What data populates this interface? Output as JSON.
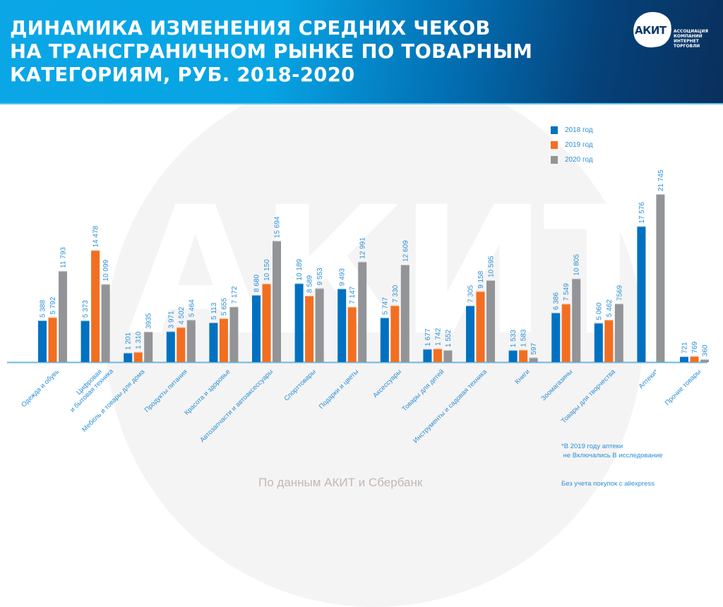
{
  "header": {
    "title_lines": [
      "ДИНАМИКА ИЗМЕНЕНИЯ СРЕДНИХ ЧЕКОВ",
      "НА ТРАНСГРАНИЧНОМ РЫНКЕ ПО ТОВАРНЫМ",
      "КАТЕГОРИЯМ, РУБ. 2018-2020"
    ],
    "logo": {
      "mark": "АКИТ",
      "lines": [
        "АССОЦИАЦИЯ",
        "КОМПАНИЙ",
        "ИНТЕРНЕТ",
        "ТОРГОВЛИ"
      ]
    }
  },
  "watermark": "АКИТ",
  "footnote_lines": [
    "*В 2019 году аптеки",
    " не Включались В исследование"
  ],
  "source": "По данным АКИТ и Сбербанк",
  "note": "Без учета покупок с aliexpress",
  "colors": {
    "2018": "#0071c1",
    "2019": "#f26f21",
    "2020": "#929497",
    "labels": "#2b8fd6",
    "axis": "#6cb7e3"
  },
  "chart_data": {
    "type": "bar",
    "title": "ДИНАМИКА ИЗМЕНЕНИЯ СРЕДНИХ ЧЕКОВ НА ТРАНСГРАНИЧНОМ РЫНКЕ ПО ТОВАРНЫМ КАТЕГОРИЯМ, РУБ. 2018-2020",
    "xlabel": "",
    "ylabel": "",
    "ylim": [
      0,
      21745
    ],
    "legend_position": "top-right",
    "grid": false,
    "categories": [
      "Одежда и обувь",
      "Цифровая\nи бытовая техника",
      "Мебель и товары для дома",
      "Продукты питания",
      "Красота и здоровье",
      "Автозапчасти и автоаксессуары",
      "Спорттовары",
      "Подарки и цветы",
      "Аксессуары",
      "Товары для детей",
      "Инструменты и садовая техника",
      "Книги",
      "Зоомагазины",
      "Товары для творчества",
      "Аптеки*",
      "Прочие товары"
    ],
    "series": [
      {
        "name": "2018 год",
        "values": [
          5388,
          5373,
          1201,
          3971,
          5113,
          8680,
          10189,
          9493,
          5747,
          1677,
          7305,
          1533,
          6386,
          5060,
          17576,
          721
        ],
        "labels": [
          "5 388",
          "5 373",
          "1 201",
          "3 971",
          "5 113",
          "8 680",
          "10 189",
          "9 493",
          "5 747",
          "1 677",
          "7 305",
          "1 533",
          "6 386",
          "5 060",
          "17 576",
          "721"
        ]
      },
      {
        "name": "2019 год",
        "values": [
          5792,
          14478,
          1310,
          4502,
          5655,
          10150,
          8589,
          7147,
          7330,
          1742,
          9158,
          1583,
          7549,
          5462,
          null,
          769
        ],
        "labels": [
          "5 792",
          "14 478",
          "1 310",
          "4 502",
          "5 655",
          "10 150",
          "8 589",
          "7 147",
          "7 330",
          "1 742",
          "9 158",
          "1 583",
          "7 549",
          "5 462",
          null,
          "769"
        ]
      },
      {
        "name": "2020 год",
        "values": [
          11793,
          10099,
          3935,
          5464,
          7172,
          15694,
          9553,
          12991,
          12609,
          1552,
          10595,
          597,
          10805,
          7569,
          21745,
          360
        ],
        "labels": [
          "11 793",
          "10 099",
          "3935",
          "5 464",
          "7 172",
          "15 694",
          "9 553",
          "12 991",
          "12 609",
          "1 552",
          "10 595",
          "597",
          "10 805",
          "7569",
          "21 745",
          "360"
        ]
      }
    ]
  }
}
